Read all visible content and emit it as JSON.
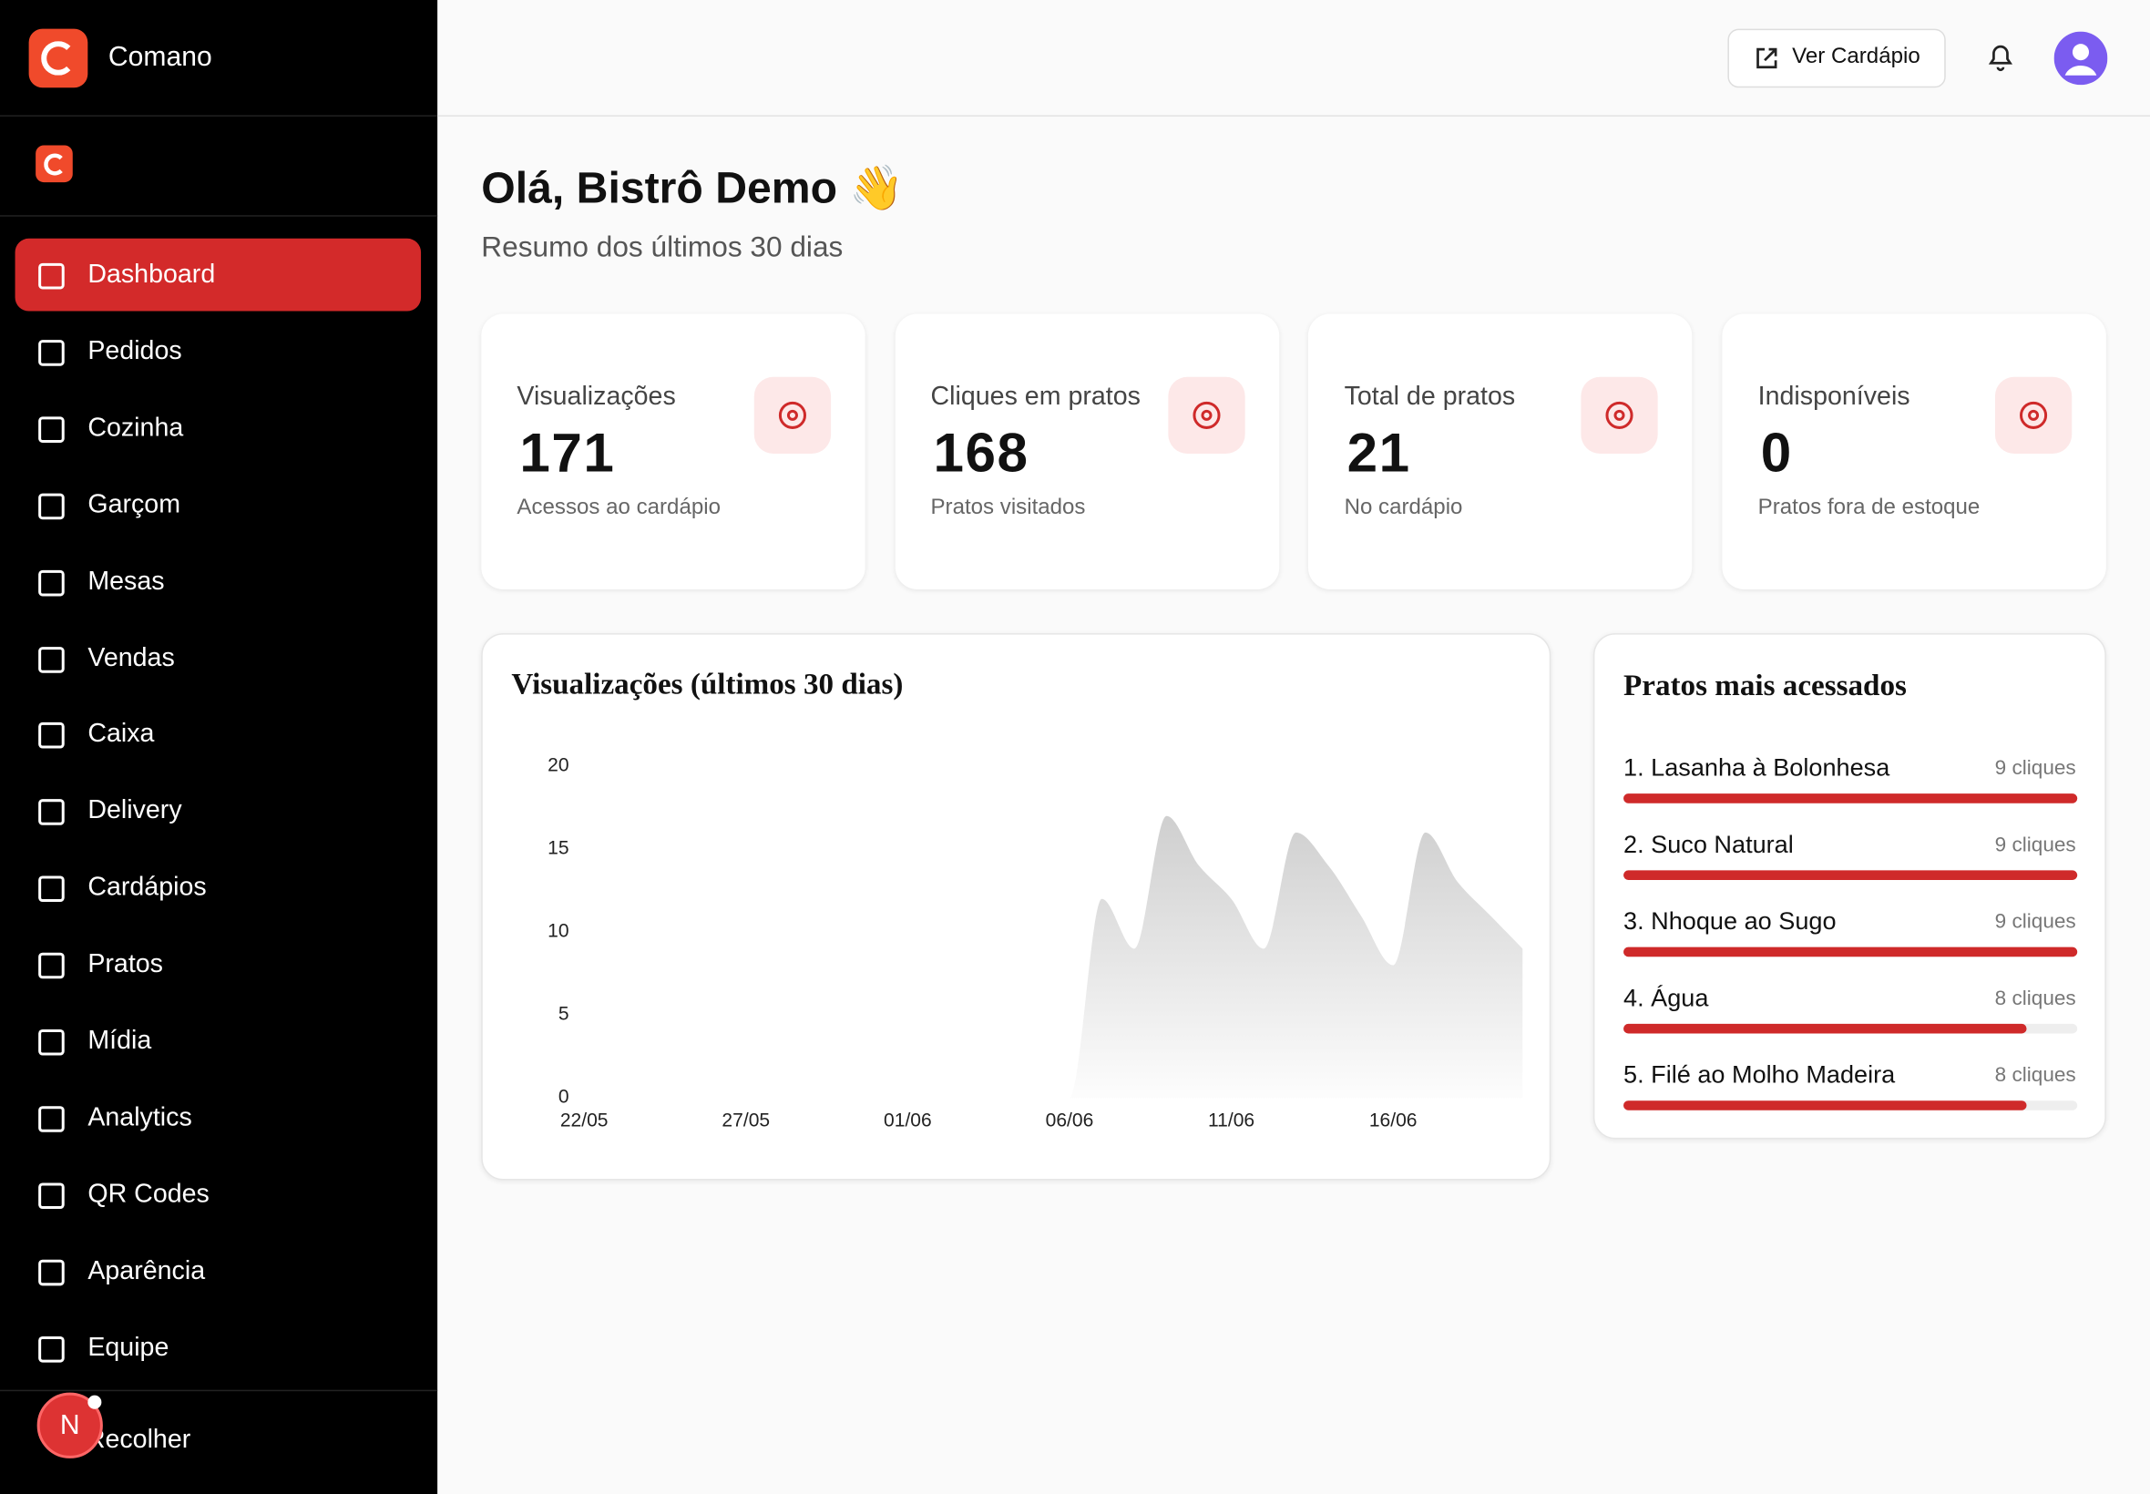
{
  "sidebar": {
    "brand": "Comano",
    "nav": [
      "Dashboard",
      "Pedidos",
      "Cozinha",
      "Garçom",
      "Mesas",
      "Vendas",
      "Caixa",
      "Delivery",
      "Cardápios",
      "Pratos",
      "Mídia",
      "Analytics",
      "QR Codes",
      "Aparência",
      "Equipe"
    ],
    "active_index": 0,
    "collapse": "Recolher",
    "dev_badge": "N"
  },
  "header": {
    "button": "Ver Cardápio"
  },
  "greeting": {
    "title": "Olá, Bistrô Demo 👋",
    "subtitle": "Resumo dos últimos 30 dias"
  },
  "stats": [
    {
      "label": "Visualizações",
      "value": 171,
      "caption": "Acessos ao cardápio"
    },
    {
      "label": "Cliques em pratos",
      "value": 168,
      "caption": "Pratos visitados"
    },
    {
      "label": "Total de pratos",
      "value": 21,
      "caption": "No cardápio"
    },
    {
      "label": "Indisponíveis",
      "value": 0,
      "caption": "Pratos fora de estoque"
    }
  ],
  "chart_data": {
    "type": "area",
    "title": "Visualizações (últimos 30 dias)",
    "color": "#d0d0d0",
    "categories": [
      "22/05",
      null,
      null,
      null,
      null,
      "27/05",
      null,
      null,
      null,
      null,
      "01/06",
      null,
      null,
      null,
      null,
      "06/06",
      null,
      null,
      null,
      null,
      "11/06",
      null,
      null,
      null,
      null,
      "16/06",
      null,
      null,
      null,
      null
    ],
    "values": [
      0,
      0,
      0,
      0,
      0,
      0,
      0,
      0,
      0,
      0,
      0,
      0,
      0,
      0,
      0,
      0,
      12,
      9,
      17,
      14,
      12,
      9,
      16,
      14,
      11,
      8,
      16,
      13,
      11,
      9
    ],
    "ylim": [
      0,
      20
    ],
    "yticks": [
      0,
      5,
      10,
      15,
      20
    ],
    "grid": false
  },
  "top_dishes": {
    "title": "Pratos mais acessados",
    "color": "#cf2a2a",
    "items": [
      {
        "name": "1. Lasanha à Bolonhesa",
        "value": 9,
        "value_label": "9 cliques"
      },
      {
        "name": "2. Suco Natural",
        "value": 9,
        "value_label": "9 cliques"
      },
      {
        "name": "3. Nhoque ao Sugo",
        "value": 9,
        "value_label": "9 cliques"
      },
      {
        "name": "4. Água",
        "value": 8,
        "value_label": "8 cliques"
      },
      {
        "name": "5. Filé ao Molho Madeira",
        "value": 8,
        "value_label": "8 cliques"
      }
    ]
  }
}
